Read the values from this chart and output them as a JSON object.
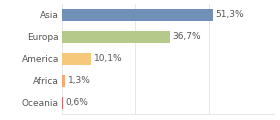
{
  "categories": [
    "Asia",
    "Europa",
    "America",
    "Africa",
    "Oceania"
  ],
  "values": [
    51.3,
    36.7,
    10.1,
    1.3,
    0.6
  ],
  "labels": [
    "51,3%",
    "36,7%",
    "10,1%",
    "1,3%",
    "0,6%"
  ],
  "bar_colors": [
    "#7090b8",
    "#b5c98a",
    "#f5c87a",
    "#f5a878",
    "#e06060"
  ],
  "background_color": "#ffffff",
  "text_color": "#555555",
  "label_fontsize": 6.5,
  "category_fontsize": 6.5,
  "xlim": [
    0,
    72
  ],
  "bar_height": 0.55,
  "grid_color": "#dddddd",
  "grid_xticks": [
    0,
    25,
    50
  ]
}
